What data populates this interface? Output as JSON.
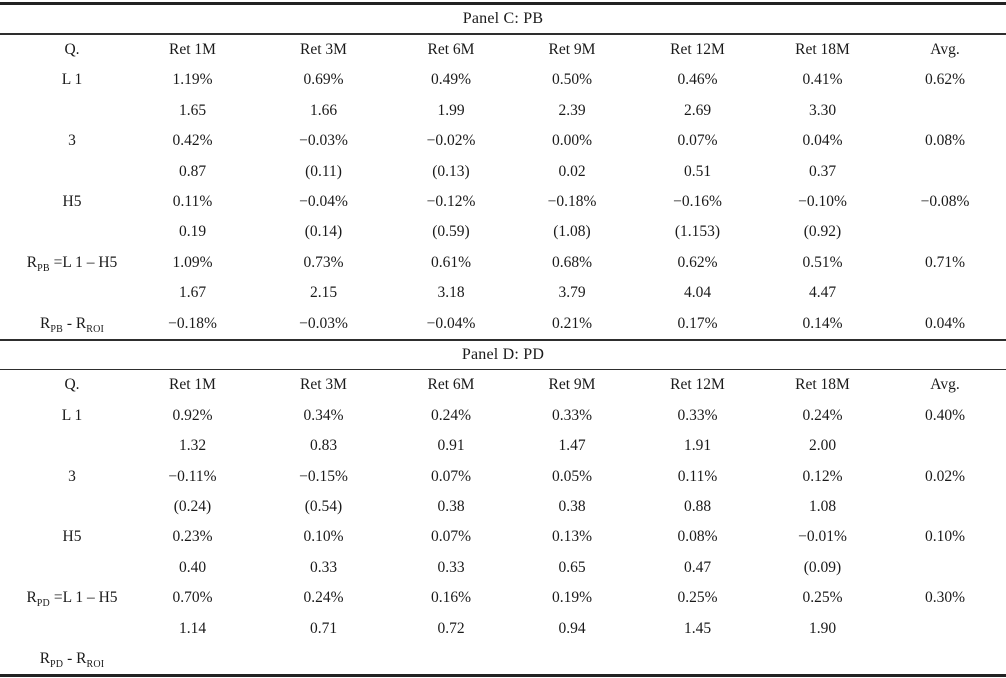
{
  "page": {
    "background_color": "#ffffff",
    "text_color": "#1a1a1a",
    "rule_color": "#2e2e2e"
  },
  "table": {
    "columns": [
      "Q.",
      "Ret 1M",
      "Ret 3M",
      "Ret 6M",
      "Ret 9M",
      "Ret 12M",
      "Ret 18M",
      "Avg."
    ],
    "panels": [
      {
        "title": "Panel C: PB",
        "rows": [
          {
            "label": [
              {
                "text": "L 1"
              }
            ],
            "cells": [
              "1.19%",
              "0.69%",
              "0.49%",
              "0.50%",
              "0.46%",
              "0.41%",
              "0.62%"
            ]
          },
          {
            "label": [],
            "cells": [
              "1.65",
              "1.66",
              "1.99",
              "2.39",
              "2.69",
              "3.30",
              ""
            ]
          },
          {
            "label": [
              {
                "text": "3"
              }
            ],
            "cells": [
              "0.42%",
              "−0.03%",
              "−0.02%",
              "0.00%",
              "0.07%",
              "0.04%",
              "0.08%"
            ]
          },
          {
            "label": [],
            "cells": [
              "0.87",
              "(0.11)",
              "(0.13)",
              "0.02",
              "0.51",
              "0.37",
              ""
            ]
          },
          {
            "label": [
              {
                "text": "H5"
              }
            ],
            "cells": [
              "0.11%",
              "−0.04%",
              "−0.12%",
              "−0.18%",
              "−0.16%",
              "−0.10%",
              "−0.08%"
            ]
          },
          {
            "label": [],
            "cells": [
              "0.19",
              "(0.14)",
              "(0.59)",
              "(1.08)",
              "(1.153)",
              "(0.92)",
              ""
            ]
          },
          {
            "label": [
              {
                "text": "R"
              },
              {
                "text": "PB",
                "sub": true
              },
              {
                "text": " =L 1 – H5"
              }
            ],
            "cells": [
              "1.09%",
              "0.73%",
              "0.61%",
              "0.68%",
              "0.62%",
              "0.51%",
              "0.71%"
            ]
          },
          {
            "label": [],
            "cells": [
              "1.67",
              "2.15",
              "3.18",
              "3.79",
              "4.04",
              "4.47",
              ""
            ]
          },
          {
            "label": [
              {
                "text": "R"
              },
              {
                "text": "PB",
                "sub": true
              },
              {
                "text": " - R"
              },
              {
                "text": "ROI",
                "sub": true
              }
            ],
            "cells": [
              "−0.18%",
              "−0.03%",
              "−0.04%",
              "0.21%",
              "0.17%",
              "0.14%",
              "0.04%"
            ]
          }
        ]
      },
      {
        "title": "Panel D: PD",
        "rows": [
          {
            "label": [
              {
                "text": "L 1"
              }
            ],
            "cells": [
              "0.92%",
              "0.34%",
              "0.24%",
              "0.33%",
              "0.33%",
              "0.24%",
              "0.40%"
            ]
          },
          {
            "label": [],
            "cells": [
              "1.32",
              "0.83",
              "0.91",
              "1.47",
              "1.91",
              "2.00",
              ""
            ]
          },
          {
            "label": [
              {
                "text": "3"
              }
            ],
            "cells": [
              "−0.11%",
              "−0.15%",
              "0.07%",
              "0.05%",
              "0.11%",
              "0.12%",
              "0.02%"
            ]
          },
          {
            "label": [],
            "cells": [
              "(0.24)",
              "(0.54)",
              "0.38",
              "0.38",
              "0.88",
              "1.08",
              ""
            ]
          },
          {
            "label": [
              {
                "text": "H5"
              }
            ],
            "cells": [
              "0.23%",
              "0.10%",
              "0.07%",
              "0.13%",
              "0.08%",
              "−0.01%",
              "0.10%"
            ]
          },
          {
            "label": [],
            "cells": [
              "0.40",
              "0.33",
              "0.33",
              "0.65",
              "0.47",
              "(0.09)",
              ""
            ]
          },
          {
            "label": [
              {
                "text": "R"
              },
              {
                "text": "PD",
                "sub": true
              },
              {
                "text": " =L 1 – H5"
              }
            ],
            "cells": [
              "0.70%",
              "0.24%",
              "0.16%",
              "0.19%",
              "0.25%",
              "0.25%",
              "0.30%"
            ]
          },
          {
            "label": [],
            "cells": [
              "1.14",
              "0.71",
              "0.72",
              "0.94",
              "1.45",
              "1.90",
              ""
            ]
          },
          {
            "label": [
              {
                "text": "R"
              },
              {
                "text": "PD",
                "sub": true
              },
              {
                "text": " - R"
              },
              {
                "text": "ROI",
                "sub": true
              }
            ],
            "cells": [
              "",
              "",
              "",
              "",
              "",
              "",
              ""
            ]
          }
        ]
      }
    ]
  }
}
